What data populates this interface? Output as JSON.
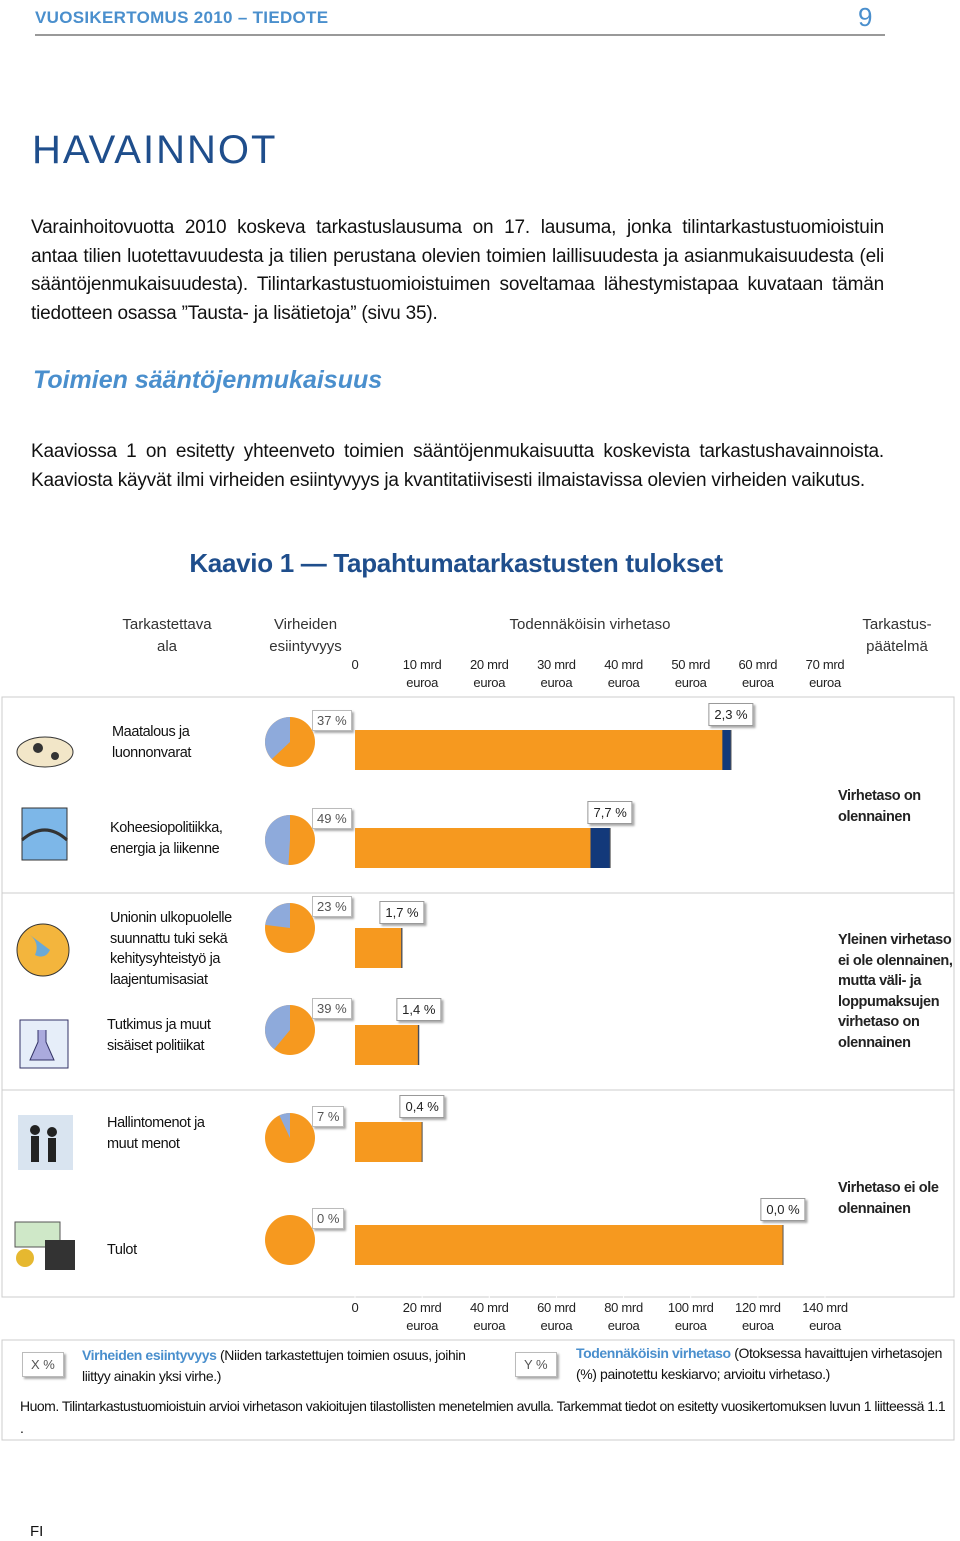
{
  "header": {
    "title": "VUOSIKERTOMUS 2010 – TIEDOTE",
    "page": "9"
  },
  "heading": "HAVAINNOT",
  "intro": "Varainhoitovuotta 2010 koskeva tarkastuslausuma on 17. lausuma, jonka tilintarkastustuomioistuin antaa tilien luotettavuudesta ja tilien perustana olevien toimien laillisuudesta ja asianmukaisuudesta (eli sääntöjenmukaisuudesta). Tilintarkastustuomioistuimen soveltamaa lähestymistapaa kuvataan tämän tiedotteen osassa ”Tausta- ja lisätietoja” (sivu 35).",
  "subheading": "Toimien sääntöjenmukaisuus",
  "body": "Kaaviossa 1 on esitetty yhteenveto toimien sääntöjenmukaisuutta koskevista tarkastushavainnoista. Kaaviosta käyvät ilmi virheiden esiintyvyys ja kvantitatiivisesti ilmaistavissa olevien virheiden vaikutus.",
  "chart": {
    "type": "bar",
    "title": "Kaavio 1 — Tapahtumatarkastusten tulokset",
    "headers": [
      "Tarkastettava ala",
      "Virheiden esiintyvyys",
      "Todennäköisin virhetaso",
      "Tarkastus-päätelmä"
    ],
    "xlim": [
      0,
      70
    ],
    "xticks": [
      0,
      {
        "value": 10,
        "label": "10 mrd euroa"
      },
      {
        "value": 20,
        "label": "20 mrd euroa"
      },
      {
        "value": 30,
        "label": "30 mrd euroa"
      },
      {
        "value": 40,
        "label": "40 mrd euroa"
      },
      {
        "value": 50,
        "label": "50 mrd euroa"
      },
      {
        "value": 60,
        "label": "60 mrd euroa"
      },
      {
        "value": 70,
        "label": "70 mrd euroa"
      }
    ],
    "x2lim": [
      0,
      140
    ],
    "x2ticks": [
      0,
      {
        "value": 20,
        "label": "20 mrd euroa"
      },
      {
        "value": 40,
        "label": "40 mrd euroa"
      },
      {
        "value": 60,
        "label": "60 mrd euroa"
      },
      {
        "value": 80,
        "label": "80 mrd euroa"
      },
      {
        "value": 100,
        "label": "100 mrd euroa"
      },
      {
        "value": 120,
        "label": "120 mrd euroa"
      },
      {
        "value": 140,
        "label": "140 mrd euroa"
      }
    ],
    "bar_color": "#f6991f",
    "error_color": "#13397a",
    "pie_color": "#8eaadb",
    "rows": [
      {
        "label": "Maatalous ja luonnonvarat",
        "occurrence": 37,
        "occurrence_label": "37 %",
        "error_rate": 2.3,
        "error_label": "2,3 %",
        "population": 56
      },
      {
        "label": "Koheesiopolitiikka, energia ja liikenne",
        "occurrence": 49,
        "occurrence_label": "49 %",
        "error_rate": 7.7,
        "error_label": "7,7 %",
        "population": 38
      },
      {
        "label": "Unionin ulkopuolelle suunnattu tuki sekä kehitysyhteistyö ja laajentumisasiat",
        "occurrence": 23,
        "occurrence_label": "23 %",
        "error_rate": 1.7,
        "error_label": "1,7 %",
        "population": 7
      },
      {
        "label": "Tutkimus ja muut sisäiset politiikat",
        "occurrence": 39,
        "occurrence_label": "39 %",
        "error_rate": 1.4,
        "error_label": "1,4 %",
        "population": 9.5
      },
      {
        "label": "Hallintomenot ja muut menot",
        "occurrence": 7,
        "occurrence_label": "7 %",
        "error_rate": 0.4,
        "error_label": "0,4 %",
        "population": 10
      },
      {
        "label": "Tulot",
        "occurrence": 0,
        "occurrence_label": "0 %",
        "error_rate": 0,
        "error_label": "0,0 %",
        "population": 127.5,
        "axis": "x2"
      }
    ],
    "conclusions": [
      "Virhetaso on olennainen",
      "Yleinen virhetaso ei ole olennainen, mutta väli- ja loppumaksujen virhetaso on olennainen",
      "Virhetaso ei ole olennainen"
    ],
    "legend": {
      "x_box": "X %",
      "x_title": "Virheiden esiintyvyys",
      "x_text": "(Niiden tarkastettujen toimien osuus, joihin liittyy ainakin yksi virhe.)",
      "y_box": "Y %",
      "y_title": "Todennäköisin virhetaso",
      "y_text": "(Otoksessa havaittujen virhetasojen (%) painotettu keskiarvo; arvioitu virhetaso.)"
    },
    "note": "Huom. Tilintarkastustuomioistuin arvioi virhetason vakioitujen tilastollisten menetelmien avulla. Tarkemmat tiedot on esitetty vuosikertomuksen luvun 1 liitteessä 1.1 ."
  },
  "footer": "FI"
}
